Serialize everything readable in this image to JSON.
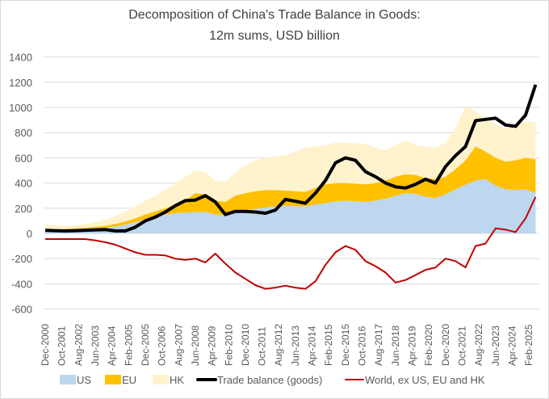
{
  "chart_data": {
    "type": "area",
    "title": [
      "Decomposition of China's Trade Balance in Goods:",
      "12m sums, USD billion"
    ],
    "xlabel": "",
    "ylabel": "",
    "ylim": [
      -600,
      1400
    ],
    "yticks": [
      1400,
      1200,
      1000,
      800,
      600,
      400,
      200,
      0,
      -200,
      -400,
      -600
    ],
    "grid": true,
    "legend_position": "bottom",
    "x_start": "2000-12",
    "x_step_months": 6,
    "x_end": "2025-06",
    "xtick_labels": [
      "Dec-2000",
      "Oct-2001",
      "Aug-2002",
      "Jun-2003",
      "Apr-2004",
      "Feb-2005",
      "Dec-2005",
      "Oct-2006",
      "Aug-2007",
      "Jun-2008",
      "Apr-2009",
      "Feb-2010",
      "Dec-2010",
      "Oct-2011",
      "Aug-2012",
      "Jun-2013",
      "Apr-2014",
      "Feb-2015",
      "Dec-2015",
      "Oct-2016",
      "Aug-2017",
      "Jun-2018",
      "Apr-2019",
      "Feb-2020",
      "Dec-2020",
      "Oct-2021",
      "Aug-2022",
      "Jun-2023",
      "Apr-2024",
      "Feb-2025"
    ],
    "xtick_step_months": 10,
    "stacked_series": [
      {
        "name": "US",
        "color": "#BDD7EE",
        "values": [
          25,
          25,
          25,
          28,
          30,
          35,
          40,
          55,
          70,
          90,
          110,
          130,
          150,
          160,
          165,
          170,
          170,
          150,
          145,
          165,
          180,
          195,
          205,
          215,
          220,
          215,
          215,
          230,
          240,
          255,
          260,
          255,
          250,
          260,
          275,
          300,
          320,
          315,
          290,
          280,
          310,
          350,
          385,
          420,
          430,
          380,
          350,
          345,
          350,
          320
        ]
      },
      {
        "name": "EU",
        "color": "#FFC000",
        "values": [
          5,
          7,
          10,
          12,
          15,
          17,
          20,
          20,
          25,
          30,
          40,
          45,
          50,
          70,
          95,
          150,
          140,
          110,
          105,
          135,
          140,
          140,
          140,
          130,
          120,
          120,
          115,
          130,
          150,
          145,
          140,
          140,
          140,
          140,
          145,
          150,
          150,
          150,
          150,
          150,
          140,
          160,
          195,
          270,
          220,
          220,
          220,
          235,
          250,
          270
        ]
      },
      {
        "name": "HK",
        "color": "#FFF2CC",
        "values": [
          40,
          33,
          25,
          25,
          30,
          38,
          50,
          65,
          80,
          95,
          110,
          125,
          145,
          170,
          190,
          180,
          180,
          160,
          160,
          180,
          220,
          245,
          255,
          265,
          280,
          315,
          350,
          330,
          310,
          320,
          320,
          320,
          320,
          280,
          240,
          250,
          270,
          235,
          250,
          250,
          270,
          320,
          430,
          280,
          260,
          270,
          260,
          280,
          290,
          290
        ]
      }
    ],
    "line_series": [
      {
        "name": "Trade balance (goods)",
        "color": "#000000",
        "values": [
          25,
          22,
          20,
          22,
          25,
          28,
          30,
          20,
          20,
          50,
          100,
          130,
          170,
          220,
          260,
          265,
          300,
          250,
          150,
          175,
          175,
          170,
          160,
          185,
          270,
          255,
          240,
          320,
          420,
          560,
          600,
          580,
          490,
          450,
          400,
          370,
          360,
          390,
          430,
          400,
          530,
          617,
          690,
          895,
          905,
          915,
          860,
          850,
          940,
          1180
        ]
      },
      {
        "name": "World, ex US, EU and HK",
        "color": "#C00000",
        "values": [
          -45,
          -45,
          -45,
          -45,
          -45,
          -55,
          -70,
          -90,
          -120,
          -150,
          -170,
          -170,
          -175,
          -200,
          -210,
          -200,
          -230,
          -160,
          -240,
          -310,
          -360,
          -410,
          -440,
          -430,
          -415,
          -430,
          -440,
          -380,
          -250,
          -150,
          -100,
          -130,
          -220,
          -260,
          -310,
          -390,
          -370,
          -330,
          -290,
          -270,
          -200,
          -220,
          -270,
          -100,
          -80,
          40,
          30,
          10,
          120,
          290
        ]
      }
    ],
    "legend": [
      "US",
      "EU",
      "HK",
      "Trade balance (goods)",
      "World, ex US, EU and HK"
    ]
  }
}
